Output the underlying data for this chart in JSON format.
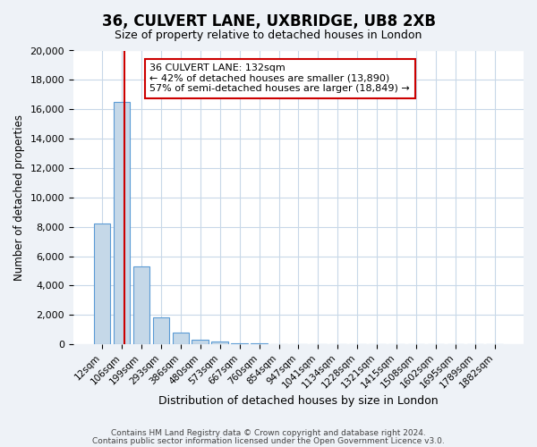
{
  "title": "36, CULVERT LANE, UXBRIDGE, UB8 2XB",
  "subtitle": "Size of property relative to detached houses in London",
  "bar_labels": [
    "12sqm",
    "106sqm",
    "199sqm",
    "293sqm",
    "386sqm",
    "480sqm",
    "573sqm",
    "667sqm",
    "760sqm",
    "854sqm",
    "947sqm",
    "1041sqm",
    "1134sqm",
    "1228sqm",
    "1321sqm",
    "1415sqm",
    "1508sqm",
    "1602sqm",
    "1695sqm",
    "1789sqm",
    "1882sqm"
  ],
  "bar_heights": [
    8200,
    16500,
    5300,
    1850,
    800,
    300,
    200,
    100,
    80,
    0,
    0,
    0,
    0,
    0,
    0,
    0,
    0,
    0,
    0,
    0,
    0
  ],
  "bar_color": "#c5d8e8",
  "bar_edge_color": "#5b9bd5",
  "ylim": [
    0,
    20000
  ],
  "yticks": [
    0,
    2000,
    4000,
    6000,
    8000,
    10000,
    12000,
    14000,
    16000,
    18000,
    20000
  ],
  "xlabel": "Distribution of detached houses by size in London",
  "ylabel": "Number of detached properties",
  "property_line_x": 1.15,
  "property_line_color": "#cc0000",
  "annotation_title": "36 CULVERT LANE: 132sqm",
  "annotation_line1": "← 42% of detached houses are smaller (13,890)",
  "annotation_line2": "57% of semi-detached houses are larger (18,849) →",
  "annotation_box_color": "#cc0000",
  "footer_line1": "Contains HM Land Registry data © Crown copyright and database right 2024.",
  "footer_line2": "Contains public sector information licensed under the Open Government Licence v3.0.",
  "bg_color": "#eef2f7",
  "plot_bg_color": "#ffffff",
  "grid_color": "#c8d8e8"
}
